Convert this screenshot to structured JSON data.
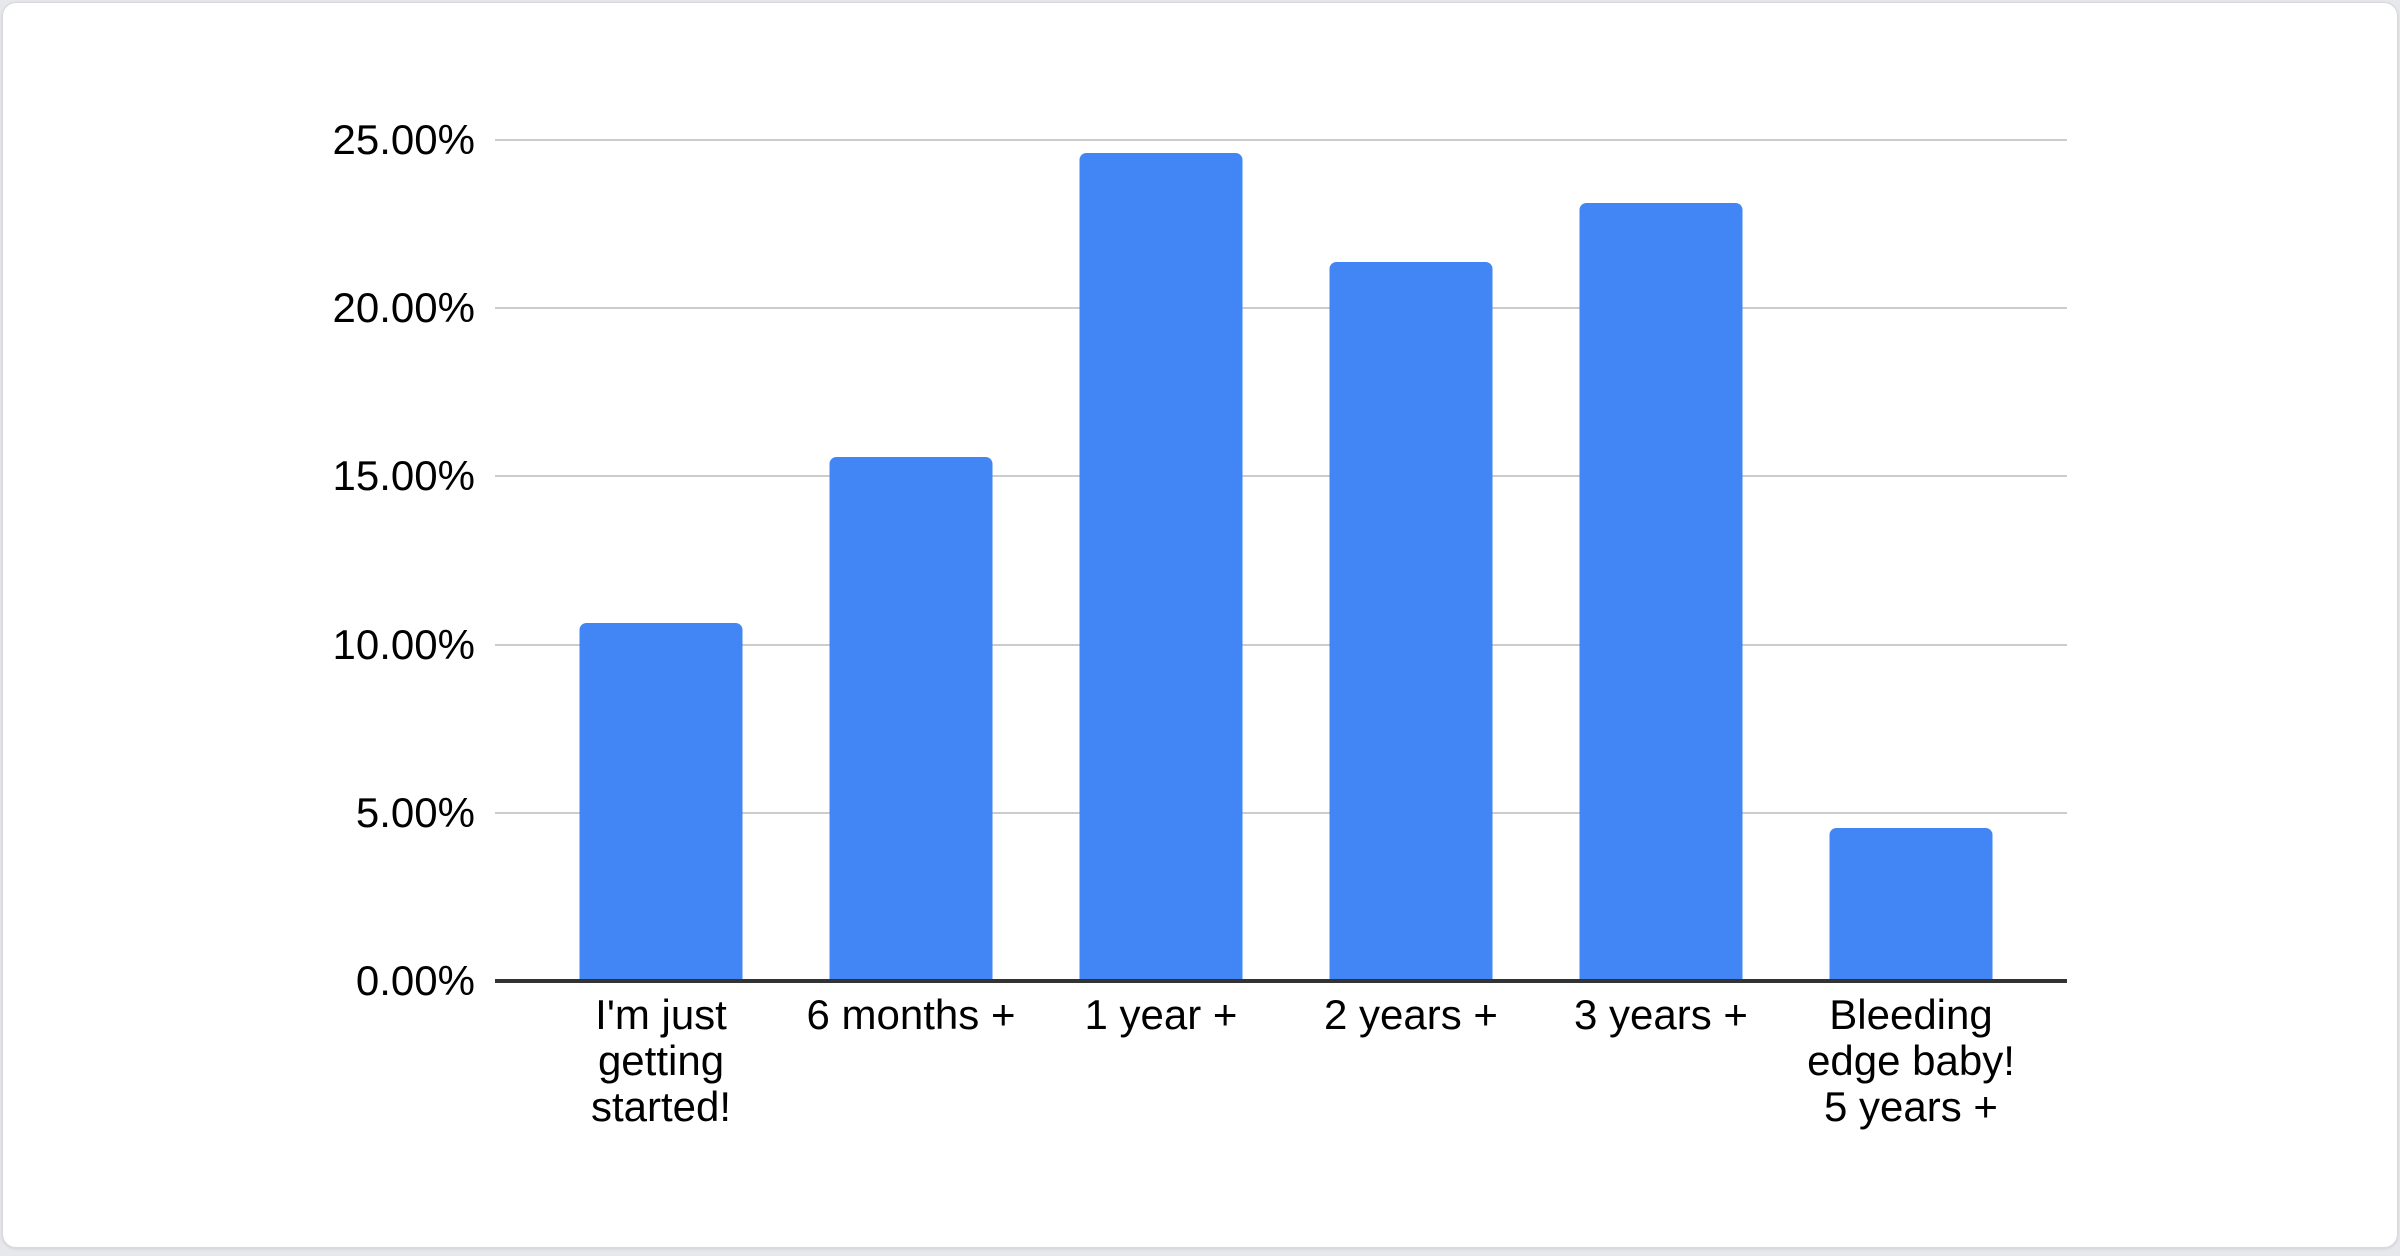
{
  "chart_data": {
    "type": "bar",
    "title": "",
    "xlabel": "",
    "ylabel": "",
    "categories": [
      "I'm just\ngetting\nstarted!",
      "6 months +",
      "1 year +",
      "2 years +",
      "3 years +",
      "Bleeding\nedge baby!\n5 years +"
    ],
    "values": [
      10.64,
      15.58,
      24.62,
      21.37,
      23.13,
      4.55
    ],
    "value_unit": "%",
    "ylim": [
      0,
      25
    ],
    "ytick_step": 5,
    "ytick_labels": [
      "25.00%",
      "20.00%",
      "15.00%",
      "10.00%",
      "5.00%",
      "0.00%"
    ],
    "grid": true,
    "legend_position": "none",
    "colors": {
      "bar": "#4285f4",
      "gridline": "#cccccc",
      "axis_line": "#333333",
      "tick_text": "#000000",
      "card_background": "#ffffff",
      "card_border": "#d8d9dd",
      "page_background": "#e7e8ec"
    }
  }
}
